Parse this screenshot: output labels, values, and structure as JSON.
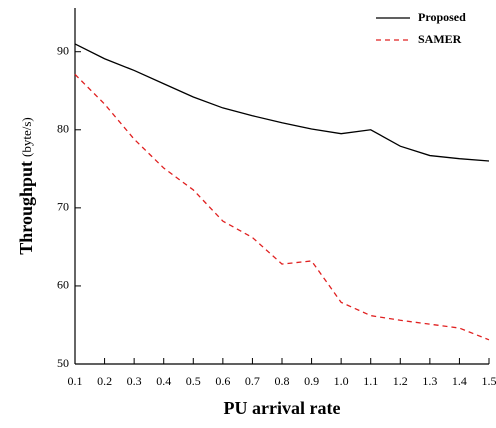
{
  "chart_data": {
    "type": "line",
    "xlabel": "PU arrival rate",
    "ylabel": "Throughput",
    "ylabel_unit": "(byte/s)",
    "x": [
      0.1,
      0.2,
      0.3,
      0.4,
      0.5,
      0.6,
      0.7,
      0.8,
      0.9,
      1.0,
      1.1,
      1.2,
      1.3,
      1.4,
      1.5
    ],
    "series": [
      {
        "name": "Proposed",
        "color": "#000000",
        "dash": "solid",
        "values": [
          91.0,
          89.1,
          87.6,
          85.9,
          84.2,
          82.8,
          81.8,
          80.9,
          80.1,
          79.5,
          80.0,
          77.9,
          76.7,
          76.3,
          76.0
        ]
      },
      {
        "name": "SAMER",
        "color": "#e02020",
        "dash": "dashed",
        "values": [
          87.1,
          83.3,
          78.8,
          75.1,
          72.3,
          68.3,
          66.2,
          62.8,
          63.2,
          57.9,
          56.2,
          55.6,
          55.1,
          54.6,
          53.1
        ]
      }
    ],
    "xlim": [
      0.1,
      1.5
    ],
    "ylim": [
      50,
      95.6
    ],
    "xticks": [
      0.1,
      0.2,
      0.3,
      0.4,
      0.5,
      0.6,
      0.7,
      0.8,
      0.9,
      {
        "value": 1,
        "label": "1.0"
      },
      1.1,
      1.2,
      1.3,
      1.4,
      1.5
    ],
    "yticks": [
      50,
      60,
      70,
      80,
      90
    ],
    "legend": "top-right"
  }
}
